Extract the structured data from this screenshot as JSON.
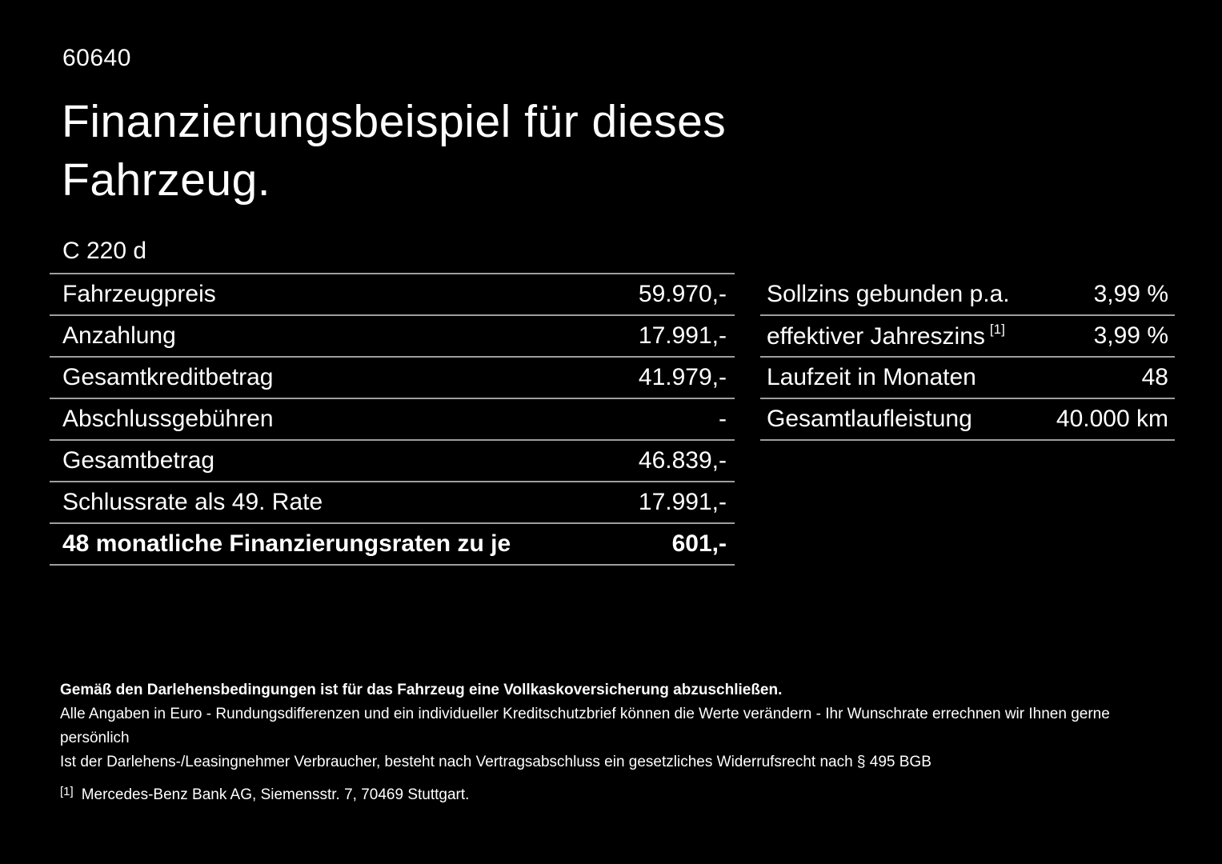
{
  "page": {
    "background_color": "#000000",
    "text_color": "#ffffff",
    "divider_color": "#9e9e9e"
  },
  "header": {
    "ref_number": "60640",
    "title_line1": "Finanzierungsbeispiel für dieses",
    "title_line2": "Fahrzeug.",
    "model": "C 220 d"
  },
  "finance_table": {
    "rows": [
      {
        "label": "Fahrzeugpreis",
        "value": "59.970,-"
      },
      {
        "label": "Anzahlung",
        "value": "17.991,-"
      },
      {
        "label": "Gesamtkreditbetrag",
        "value": "41.979,-"
      },
      {
        "label": "Abschlussgebühren",
        "value": "-"
      },
      {
        "label": "Gesamtbetrag",
        "value": "46.839,-"
      },
      {
        "label": "Schlussrate als 49. Rate",
        "value": "17.991,-"
      },
      {
        "label": "48 monatliche Finanzierungsraten zu je",
        "value": "601,-"
      }
    ]
  },
  "conditions_table": {
    "rows": [
      {
        "label": "Sollzins gebunden p.a.",
        "sup": "",
        "value": "3,99 %"
      },
      {
        "label": "effektiver Jahreszins",
        "sup": "[1]",
        "value": "3,99 %"
      },
      {
        "label": "Laufzeit in Monaten",
        "sup": "",
        "value": "48"
      },
      {
        "label": "Gesamtlaufleistung",
        "sup": "",
        "value": "40.000 km"
      }
    ]
  },
  "footnotes": {
    "insurance_note": "Gemäß den Darlehensbedingungen ist für das Fahrzeug eine Vollkaskoversicherung abzuschließen.",
    "disclaimer_note": "Alle Angaben in Euro - Rundungsdifferenzen und ein individueller Kreditschutzbrief können die Werte verändern - Ihr Wunschrate errechnen wir Ihnen gerne persönlich",
    "withdrawal_note": "Ist der Darlehens-/Leasingnehmer Verbraucher, besteht nach Vertragsabschluss ein gesetzliches Widerrufsrecht nach § 495 BGB",
    "ref_marker": "[1]",
    "ref_text": "Mercedes-Benz Bank AG, Siemensstr. 7, 70469 Stuttgart."
  }
}
